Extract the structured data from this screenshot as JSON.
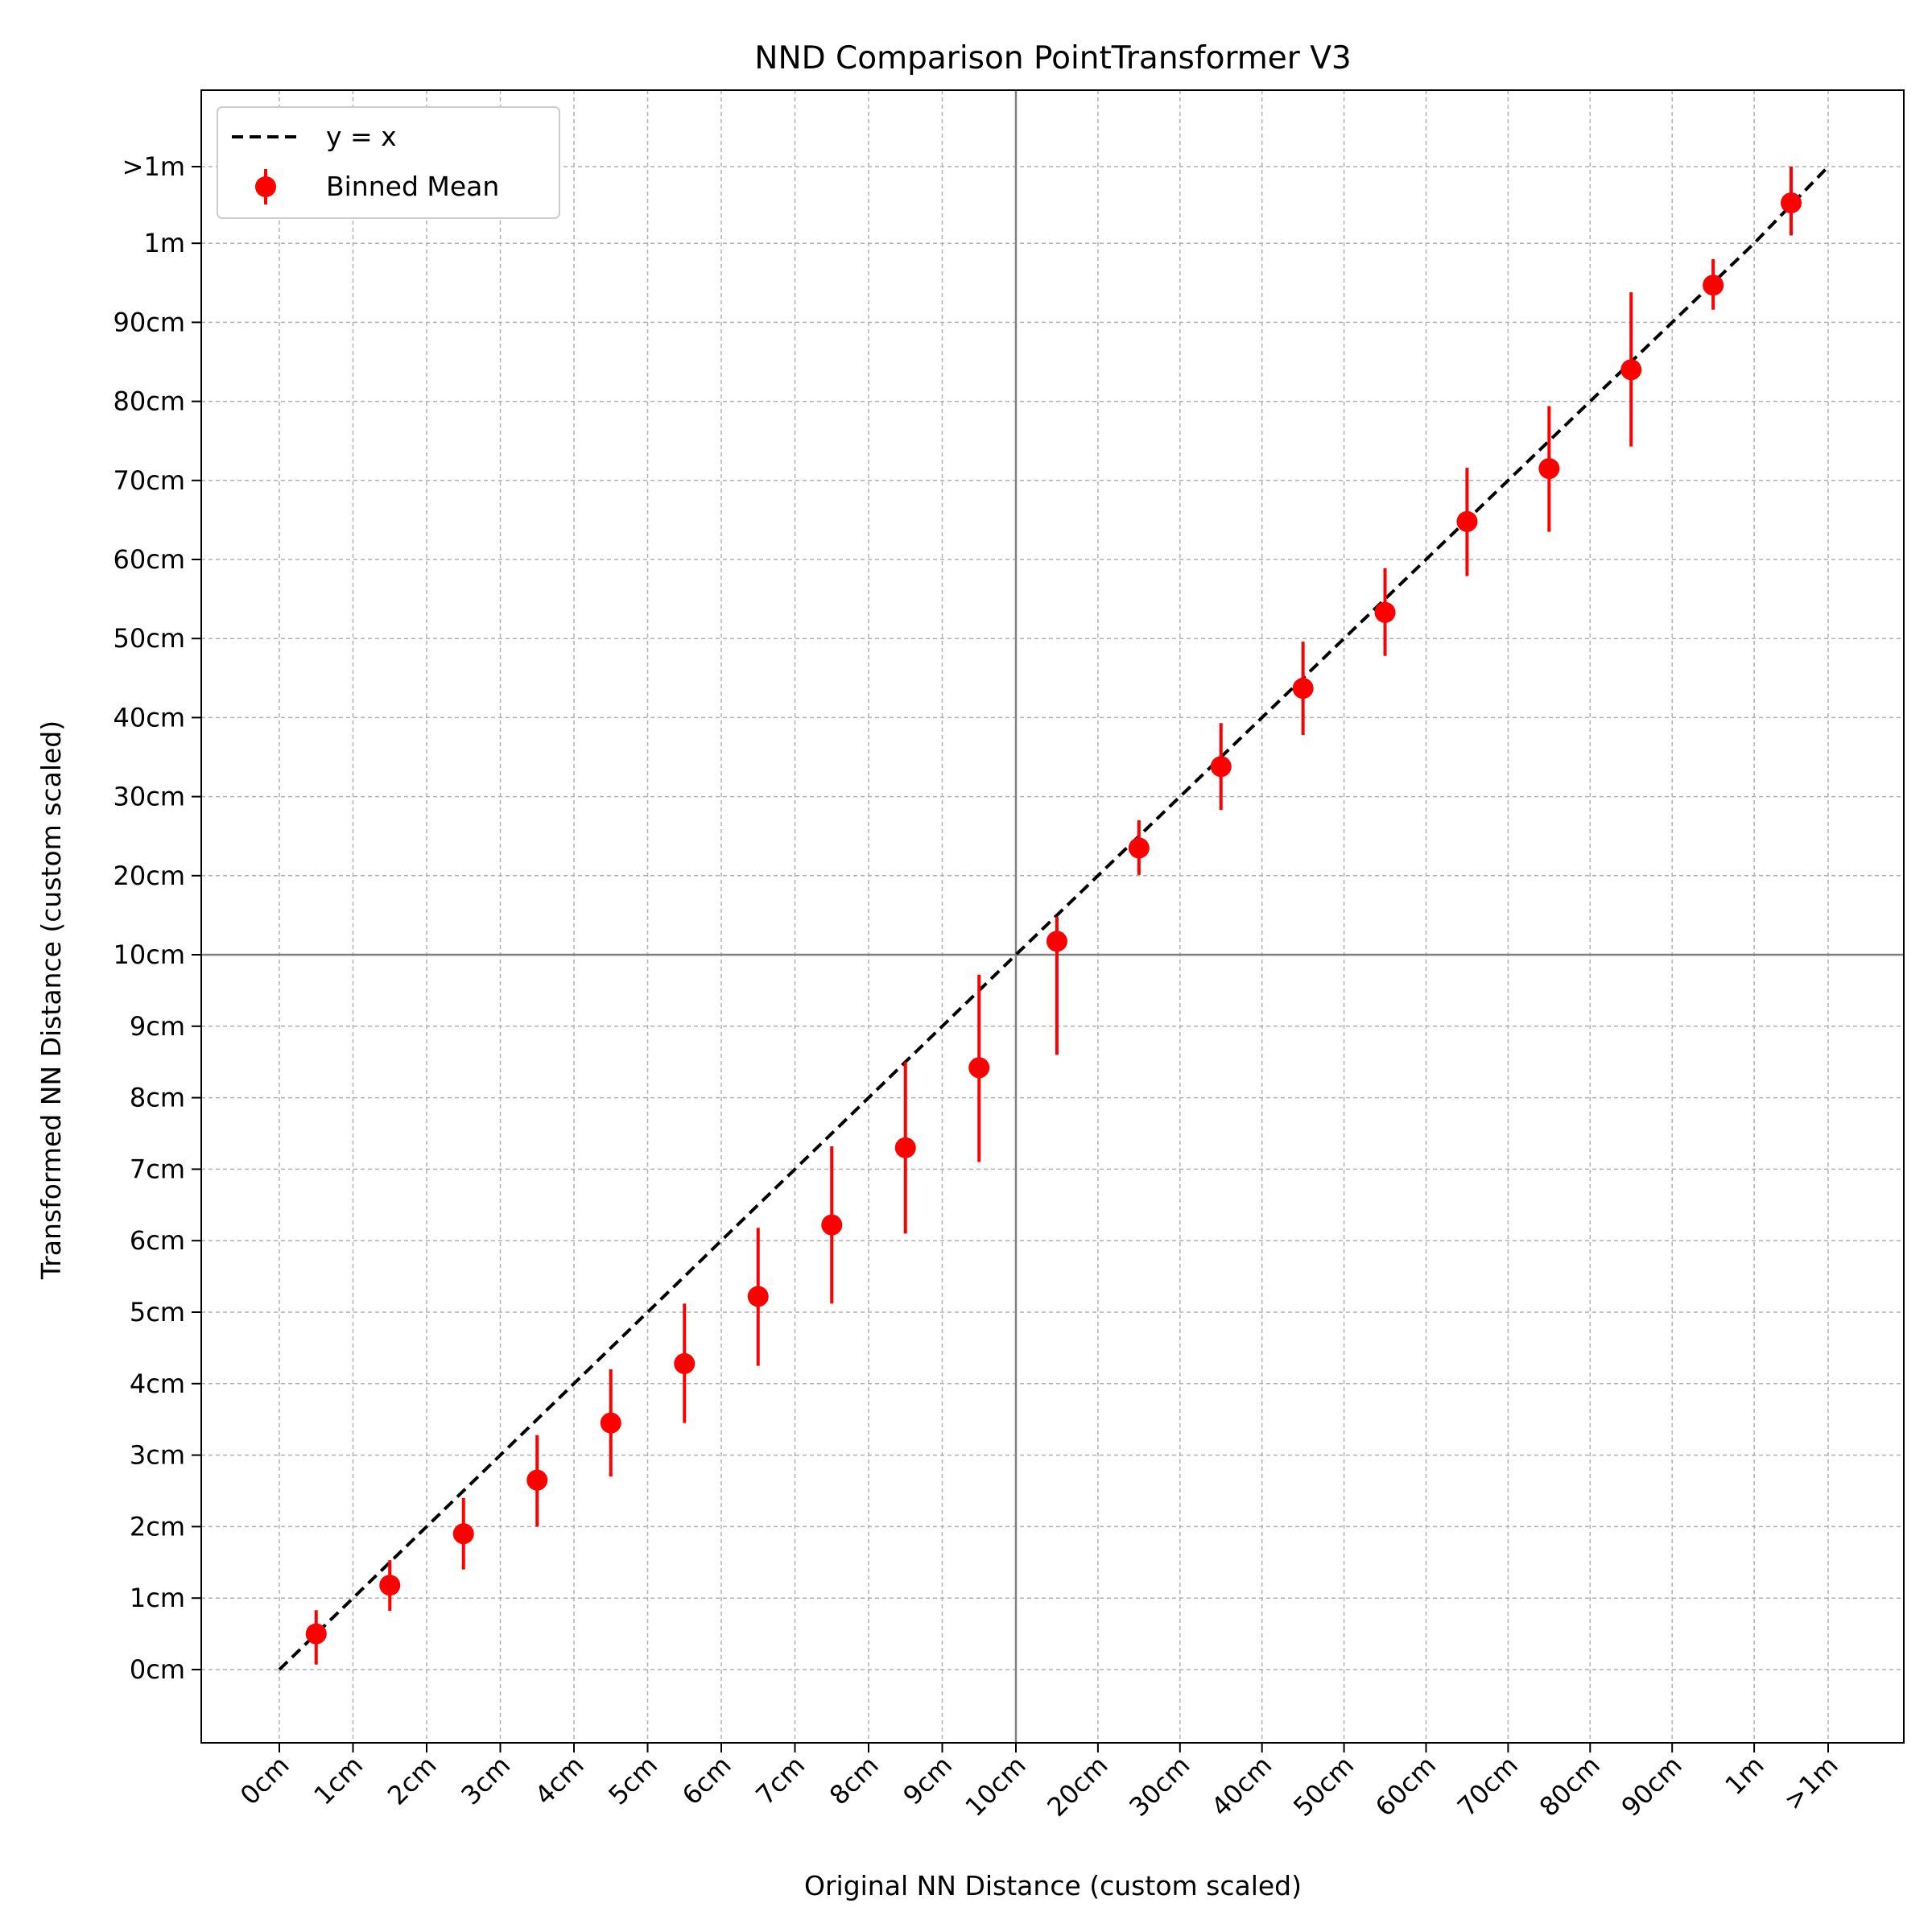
{
  "chart_data": {
    "type": "scatter",
    "title": "NND Comparison PointTransformer V3",
    "xlabel": "Original NN Distance (custom scaled)",
    "ylabel": "Transformed NN Distance (custom scaled)",
    "x_ticks": [
      "0cm",
      "1cm",
      "2cm",
      "3cm",
      "4cm",
      "5cm",
      "6cm",
      "7cm",
      "8cm",
      "9cm",
      "10cm",
      "20cm",
      "30cm",
      "40cm",
      "50cm",
      "60cm",
      "70cm",
      "80cm",
      "90cm",
      "1m",
      ">1m"
    ],
    "y_ticks": [
      "0cm",
      "1cm",
      "2cm",
      "3cm",
      "4cm",
      "5cm",
      "6cm",
      "7cm",
      "8cm",
      "9cm",
      "10cm",
      "20cm",
      "30cm",
      "40cm",
      "50cm",
      "60cm",
      "70cm",
      "80cm",
      "90cm",
      "1m",
      ">1m"
    ],
    "x_scale": "piecewise: 0-10cm linear (1cm steps), 10cm-1m linear (10cm steps), then >1m",
    "y_scale": "piecewise: 0-10cm linear (1cm steps), 10cm-1m linear (10cm steps), then >1m",
    "grid": true,
    "reference_lines": [
      {
        "axis": "x",
        "value": "10cm",
        "color": "#808080"
      },
      {
        "axis": "y",
        "value": "10cm",
        "color": "#808080"
      }
    ],
    "legend": {
      "placement": "top-left",
      "entries": [
        "y = x",
        "Binned Mean"
      ]
    },
    "series": [
      {
        "name": "y = x",
        "style": "dashed-line",
        "color": "#000000",
        "x": [
          "0cm",
          ">1m"
        ],
        "y": [
          "0cm",
          ">1m"
        ]
      },
      {
        "name": "Binned Mean",
        "style": "points-with-errorbars",
        "color": "#ff0000",
        "points": [
          {
            "x": 0.5,
            "y": 0.5,
            "lo": 0.07,
            "hi": 0.83
          },
          {
            "x": 1.5,
            "y": 1.18,
            "lo": 0.82,
            "hi": 1.53
          },
          {
            "x": 2.5,
            "y": 1.9,
            "lo": 1.4,
            "hi": 2.4
          },
          {
            "x": 3.5,
            "y": 2.65,
            "lo": 2.0,
            "hi": 3.28
          },
          {
            "x": 4.5,
            "y": 3.45,
            "lo": 2.7,
            "hi": 4.2
          },
          {
            "x": 5.5,
            "y": 4.28,
            "lo": 3.45,
            "hi": 5.12
          },
          {
            "x": 6.5,
            "y": 5.22,
            "lo": 4.25,
            "hi": 6.18
          },
          {
            "x": 7.5,
            "y": 6.22,
            "lo": 5.12,
            "hi": 7.32
          },
          {
            "x": 8.5,
            "y": 7.3,
            "lo": 6.1,
            "hi": 8.5
          },
          {
            "x": 9.5,
            "y": 8.42,
            "lo": 7.1,
            "hi": 9.72
          },
          {
            "x": 15,
            "y": 11.7,
            "lo": 8.6,
            "hi": 14.8
          },
          {
            "x": 25,
            "y": 23.5,
            "lo": 20.1,
            "hi": 27.0
          },
          {
            "x": 35,
            "y": 33.8,
            "lo": 28.3,
            "hi": 39.3
          },
          {
            "x": 45,
            "y": 43.7,
            "lo": 37.8,
            "hi": 49.6
          },
          {
            "x": 55,
            "y": 53.3,
            "lo": 47.8,
            "hi": 58.9
          },
          {
            "x": 65,
            "y": 64.8,
            "lo": 57.9,
            "hi": 71.6
          },
          {
            "x": 75,
            "y": 71.5,
            "lo": 63.5,
            "hi": 79.4
          },
          {
            "x": 85,
            "y": 84.0,
            "lo": 74.3,
            "hi": 93.8
          },
          {
            "x": 95,
            "y": 94.7,
            "lo": 91.6,
            "hi": 98.0
          },
          {
            "x": 105,
            "y": 105.0,
            "lo": 100.5,
            "hi": 110.0
          }
        ]
      }
    ]
  }
}
